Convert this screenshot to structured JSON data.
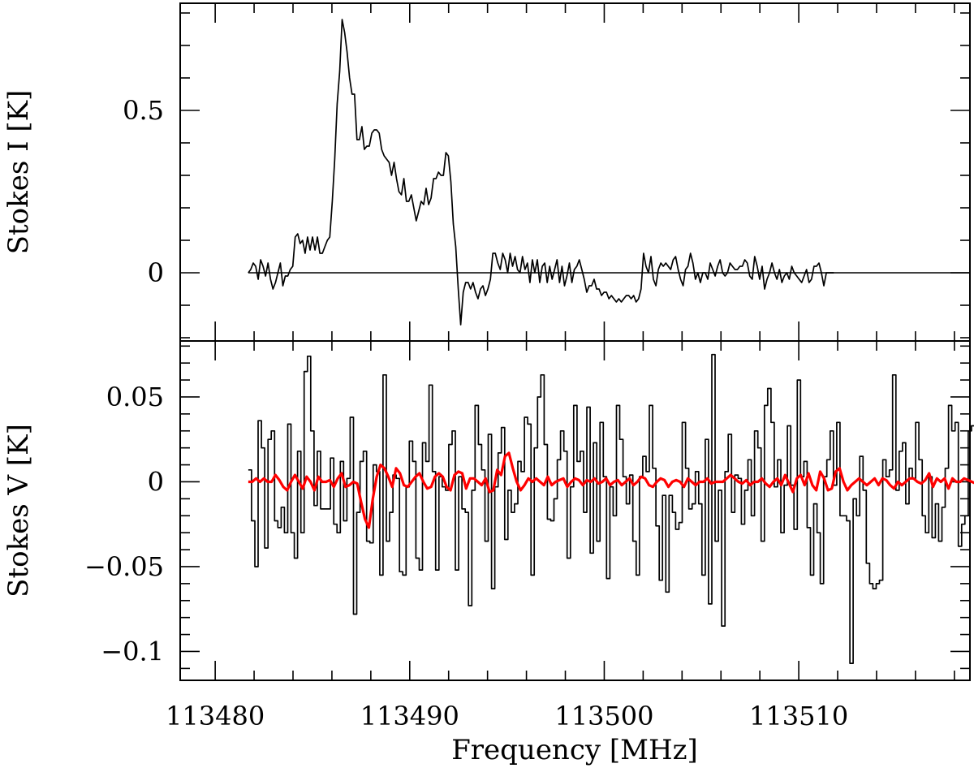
{
  "chart_data": {
    "type": "line",
    "title": "",
    "xlabel": "Frequency [MHz]",
    "xlim": [
      113478.2,
      113518.8
    ],
    "x_ticks": [
      113480,
      113490,
      113500,
      113510
    ],
    "x_tick_labels": [
      "113480",
      "113490",
      "113500",
      "113510"
    ],
    "x_minor_step": 2,
    "panels": [
      {
        "id": "stokes-i",
        "ylabel": "Stokes I [K]",
        "ylim": [
          -0.21,
          0.83
        ],
        "y_ticks": [
          0,
          0.5
        ],
        "y_tick_labels": [
          "0",
          "0.5"
        ],
        "y_minor_step": 0.1,
        "series": [
          {
            "style": "line",
            "color": "#000000",
            "x_start": 113481.7,
            "x_step": 0.127,
            "values": [
              0.0,
              0.01,
              0.03,
              0.02,
              -0.02,
              0.04,
              0.02,
              -0.01,
              0.03,
              -0.02,
              -0.05,
              -0.03,
              0.0,
              0.03,
              -0.04,
              -0.01,
              -0.01,
              0.01,
              0.02,
              0.11,
              0.12,
              0.09,
              0.1,
              0.06,
              0.11,
              0.07,
              0.11,
              0.07,
              0.11,
              0.06,
              0.06,
              0.08,
              0.1,
              0.11,
              0.22,
              0.35,
              0.52,
              0.62,
              0.78,
              0.74,
              0.68,
              0.6,
              0.55,
              0.55,
              0.41,
              0.41,
              0.45,
              0.38,
              0.39,
              0.39,
              0.43,
              0.44,
              0.44,
              0.43,
              0.38,
              0.36,
              0.35,
              0.34,
              0.3,
              0.34,
              0.29,
              0.25,
              0.24,
              0.29,
              0.22,
              0.22,
              0.24,
              0.2,
              0.16,
              0.19,
              0.22,
              0.21,
              0.26,
              0.21,
              0.23,
              0.29,
              0.29,
              0.31,
              0.3,
              0.3,
              0.37,
              0.36,
              0.28,
              0.15,
              0.08,
              -0.05,
              -0.16,
              -0.06,
              -0.03,
              -0.03,
              -0.05,
              -0.03,
              -0.06,
              -0.08,
              -0.05,
              -0.04,
              -0.07,
              -0.05,
              -0.02,
              0.06,
              0.06,
              0.03,
              0.01,
              0.06,
              0.04,
              0.0,
              0.06,
              0.02,
              0.05,
              0.01,
              0.0,
              0.05,
              0.01,
              0.03,
              -0.03,
              0.04,
              0.0,
              0.04,
              -0.03,
              0.02,
              0.03,
              -0.03,
              0.02,
              -0.02,
              0.01,
              0.04,
              -0.03,
              0.02,
              -0.04,
              -0.01,
              0.03,
              -0.03,
              0.01,
              0.02,
              0.04,
              0.01,
              -0.02,
              -0.06,
              -0.04,
              -0.04,
              -0.02,
              -0.05,
              -0.05,
              -0.07,
              -0.06,
              -0.06,
              -0.08,
              -0.07,
              -0.08,
              -0.09,
              -0.08,
              -0.09,
              -0.08,
              -0.07,
              -0.07,
              -0.08,
              -0.07,
              -0.09,
              -0.08,
              -0.05,
              0.06,
              0.02,
              -0.0,
              0.05,
              -0.02,
              -0.04,
              0.01,
              0.03,
              0.02,
              0.03,
              0.02,
              0.01,
              0.04,
              0.05,
              0.01,
              -0.02,
              -0.04,
              0.01,
              0.02,
              0.06,
              0.03,
              -0.02,
              -0.0,
              -0.03,
              -0.0,
              0.0,
              -0.02,
              0.03,
              0.01,
              -0.01,
              0.02,
              0.04,
              0.0,
              -0.01,
              0.0,
              0.03,
              0.02,
              0.01,
              0.01,
              0.02,
              0.02,
              0.04,
              0.03,
              -0.01,
              -0.02,
              0.05,
              0.02,
              -0.02,
              0.02,
              -0.05,
              -0.02,
              -0.0,
              0.03,
              0.0,
              -0.02,
              0.01,
              -0.03,
              -0.01,
              0.0,
              -0.02,
              0.02,
              0.0,
              -0.01,
              -0.02,
              -0.03,
              -0.01,
              0.01,
              -0.03,
              -0.02,
              0.02,
              0.02,
              0.03,
              0.0,
              -0.04,
              0.0,
              0.0,
              0.0,
              0.0
            ]
          }
        ]
      },
      {
        "id": "stokes-v",
        "ylabel": "Stokes V [K]",
        "ylim": [
          -0.117,
          0.083
        ],
        "y_ticks": [
          -0.1,
          -0.05,
          0,
          0.05
        ],
        "y_tick_labels": [
          "−0.1",
          "−0.05",
          "0",
          "0.05"
        ],
        "y_minor_step": 0.01,
        "series": [
          {
            "style": "step",
            "color": "#000000",
            "x_start": 113481.7,
            "x_step": 0.169,
            "values": [
              0.007,
              -0.023,
              -0.05,
              0.036,
              0.02,
              -0.039,
              0.025,
              0.03,
              -0.023,
              -0.027,
              -0.015,
              -0.03,
              0.034,
              -0.03,
              -0.045,
              0.018,
              -0.03,
              0.065,
              0.074,
              0.03,
              -0.014,
              0.018,
              -0.016,
              -0.016,
              -0.016,
              0.014,
              -0.025,
              -0.03,
              0.012,
              -0.023,
              0.002,
              0.038,
              -0.078,
              -0.018,
              0.012,
              0.018,
              -0.035,
              -0.036,
              0.01,
              0.006,
              -0.055,
              0.063,
              -0.035,
              -0.018,
              0.004,
              0.002,
              -0.053,
              -0.055,
              -0.003,
              0.024,
              0.012,
              -0.045,
              -0.052,
              0.023,
              0.012,
              0.057,
              0.006,
              -0.052,
              0.003,
              -0.003,
              -0.005,
              0.022,
              0.03,
              -0.052,
              0.003,
              -0.016,
              -0.018,
              -0.073,
              -0.005,
              0.045,
              0.022,
              0.007,
              -0.035,
              0.028,
              -0.063,
              -0.003,
              0.017,
              0.032,
              -0.034,
              -0.005,
              -0.018,
              -0.013,
              0.012,
              0.006,
              0.038,
              0.034,
              -0.055,
              0.02,
              0.05,
              0.063,
              0.022,
              -0.022,
              -0.023,
              -0.01,
              0.013,
              0.03,
              0.018,
              -0.045,
              -0.003,
              0.045,
              0.012,
              0.018,
              -0.018,
              0.044,
              -0.042,
              0.023,
              -0.035,
              0.035,
              0.003,
              -0.057,
              -0.003,
              -0.02,
              0.045,
              0.025,
              0.003,
              -0.013,
              0.004,
              -0.035,
              -0.055,
              0.003,
              0.015,
              0.006,
              0.045,
              0.008,
              -0.026,
              -0.058,
              -0.008,
              -0.065,
              -0.008,
              -0.018,
              -0.028,
              -0.024,
              0.035,
              0.008,
              -0.016,
              -0.013,
              0.006,
              -0.013,
              -0.055,
              0.025,
              -0.072,
              0.075,
              -0.035,
              -0.005,
              -0.085,
              0.006,
              0.028,
              -0.018,
              0.004,
              0.002,
              -0.025,
              -0.005,
              0.013,
              -0.02,
              0.03,
              0.02,
              -0.035,
              0.045,
              0.055,
              0.035,
              -0.003,
              0.013,
              -0.03,
              -0.002,
              0.033,
              -0.002,
              -0.028,
              0.06,
              0.003,
              0.012,
              -0.027,
              -0.055,
              -0.013,
              -0.03,
              -0.06,
              0.003,
              0.013,
              0.03,
              -0.002,
              0.035,
              -0.02,
              -0.02,
              -0.023,
              -0.107,
              -0.01,
              -0.02,
              0.015,
              -0.005,
              -0.048,
              -0.06,
              -0.063,
              -0.06,
              -0.058,
              0.013,
              0.003,
              0.007,
              0.063,
              -0.005,
              0.018,
              0.023,
              -0.013,
              0.008,
              0.002,
              0.035,
              0.013,
              -0.02,
              -0.03,
              0.003,
              -0.033,
              -0.013,
              -0.035,
              -0.015,
              0.008,
              0.045,
              0.03,
              0.035,
              -0.038,
              -0.025,
              -0.02,
              0.03,
              0.033,
              -0.057,
              -0.005,
              0.042,
              0.003,
              -0.027,
              0.03,
              0.028,
              0.005,
              -0.018,
              -0.105,
              -0.065,
              -0.03,
              -0.045,
              -0.017,
              0.045,
              -0.045,
              0.018,
              -0.045,
              -0.013,
              -0.043,
              -0.035,
              -0.015,
              -0.028,
              0.012,
              -0.045,
              -0.055,
              -0.088,
              0.036,
              0.025,
              0.036,
              -0.06,
              -0.032,
              0.013,
              0.015,
              -0.045,
              0.007,
              0.045,
              -0.028,
              0.045,
              -0.015
            ]
          },
          {
            "style": "line",
            "color": "#ff0000",
            "x_start": 113481.7,
            "x_step": 0.2,
            "values": [
              0.0,
              0.0,
              0.002,
              0.0,
              0.002,
              0.0,
              0.0,
              0.004,
              0.001,
              -0.003,
              -0.005,
              0.0,
              0.004,
              0.0,
              -0.004,
              0.003,
              0.0,
              -0.005,
              0.003,
              0.0,
              0.0,
              0.001,
              -0.003,
              0.002,
              0.005,
              -0.003,
              -0.002,
              0.0,
              -0.001,
              -0.012,
              -0.022,
              -0.027,
              -0.01,
              0.003,
              0.01,
              0.008,
              0.003,
              -0.003,
              0.008,
              0.005,
              -0.002,
              -0.003,
              0.0,
              0.003,
              0.005,
              0.0,
              -0.004,
              -0.003,
              0.003,
              0.005,
              0.003,
              -0.003,
              -0.005,
              0.004,
              0.006,
              0.005,
              -0.004,
              0.002,
              0.002,
              0.0,
              -0.002,
              0.002,
              -0.006,
              -0.005,
              0.007,
              0.004,
              0.015,
              0.017,
              0.008,
              0.0,
              -0.005,
              -0.002,
              0.002,
              0.0,
              0.002,
              0.0,
              -0.002,
              0.003,
              -0.002,
              0.0,
              0.001,
              0.002,
              -0.003,
              0.0,
              0.002,
              0.001,
              -0.002,
              0.001,
              0.0,
              0.002,
              -0.001,
              0.0,
              0.002,
              -0.002,
              0.0,
              0.001,
              -0.002,
              0.0,
              0.002,
              -0.002,
              0.0,
              0.003,
              0.002,
              -0.002,
              -0.003,
              0.0,
              0.002,
              0.001,
              -0.003,
              0.0,
              0.001,
              0.0,
              -0.003,
              0.002,
              0.0,
              -0.002,
              0.0,
              0.0,
              0.002,
              -0.001,
              0.0,
              0.0,
              0.0,
              0.002,
              0.004,
              0.002,
              0.0,
              -0.001,
              0.001,
              -0.002,
              0.0,
              0.0,
              0.002,
              -0.001,
              -0.003,
              0.0,
              0.002,
              -0.002,
              0.004,
              -0.001,
              -0.006,
              0.002,
              0.004,
              -0.002,
              0.005,
              -0.002,
              -0.005,
              0.006,
              0.002,
              -0.005,
              -0.004,
              0.006,
              0.008,
              0.0,
              -0.005,
              -0.002,
              0.0,
              0.002,
              0.0,
              -0.002,
              0.0,
              0.002,
              -0.002,
              0.002,
              0.001,
              -0.002,
              -0.004,
              0.0,
              -0.002,
              0.0,
              0.002,
              0.002,
              0.0,
              -0.001,
              0.001,
              0.005,
              -0.003,
              0.002,
              0.0,
              0.002,
              -0.004,
              0.002,
              0.0,
              0.0,
              0.002,
              0.001,
              0.0,
              -0.001,
              0.0,
              0.001,
              0.003,
              0.0,
              -0.002,
              0.0,
              0.0,
              0.0,
              0.0,
              0.0,
              0.0,
              0.0,
              0.0
            ]
          }
        ]
      }
    ]
  }
}
